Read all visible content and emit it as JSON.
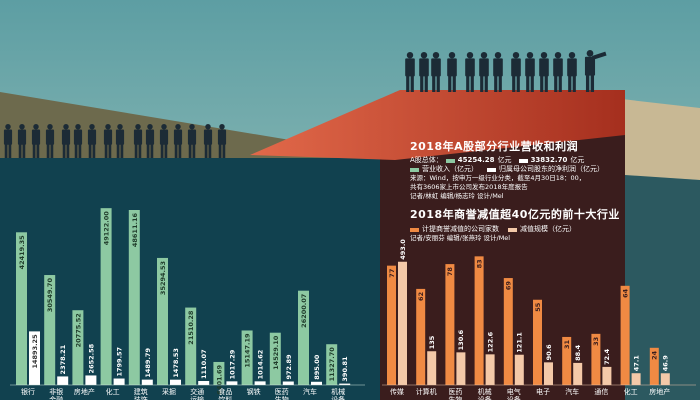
{
  "chart_data": [
    {
      "type": "bar",
      "title": "2018年A股部分行业营收和利润",
      "total_label": "A股总体：",
      "total_revenue": "45254.28",
      "total_revenue_unit": "亿元",
      "total_profit": "33832.70",
      "total_profit_unit": "亿元",
      "legend": {
        "revenue": "营业收入（亿元）",
        "profit": "归属母公司股东的净利润（亿元）"
      },
      "source": "来源：Wind，按申万一级行业分类，截至4月30日18：00，",
      "source2": "共有3606家上市公司发布2018年度报告",
      "credits": "记者/林虹 编辑/杨志玲 设计/Mel",
      "categories": [
        "银行",
        "非银金融",
        "房地产",
        "化工",
        "建筑装饰",
        "采掘",
        "交通运输",
        "食品饮料",
        "钢铁",
        "医药生物",
        "汽车",
        "机械设备"
      ],
      "category_labels": [
        "银行",
        "非银\n金融",
        "房地产",
        "化工",
        "建筑\n装饰",
        "采掘",
        "交通\n运输",
        "食品\n饮料",
        "钢铁",
        "医药\n生物",
        "汽车",
        "机械\n设备"
      ],
      "series": [
        {
          "name": "营业收入（亿元）",
          "values": [
            42419.35,
            30549.7,
            20775.52,
            49122.0,
            48611.16,
            35294.53,
            21510.28,
            6401.69,
            15147.19,
            14529.1,
            26200.07,
            11327.7
          ],
          "labels": [
            "42419.35",
            "30549.70",
            "20775.52",
            "49122.00",
            "48611.16",
            "35294.53",
            "21510.28",
            "6401.69",
            "15147.19",
            "14529.10",
            "26200.07",
            "11327.70"
          ]
        },
        {
          "name": "归属母公司股东的净利润（亿元）",
          "values": [
            14893.25,
            2378.21,
            2652.58,
            1799.57,
            1489.79,
            1478.53,
            1110.07,
            1017.29,
            1014.62,
            972.89,
            895.0,
            390.81
          ],
          "labels": [
            "14893.25",
            "2378.21",
            "2652.58",
            "1799.57",
            "1489.79",
            "1478.53",
            "1110.07",
            "1017.29",
            "1014.62",
            "972.89",
            "895.00",
            "390.81"
          ]
        }
      ]
    },
    {
      "type": "bar",
      "title": "2018年商誉减值超40亿元的前十大行业",
      "legend": {
        "count": "计提商誉减值的公司家数",
        "amount": "减值规模（亿元）"
      },
      "credits": "记者/安丽芬 编辑/张燕玲 设计/Mel",
      "categories": [
        "传媒",
        "计算机",
        "医药生物",
        "机械设备",
        "电气设备",
        "电子",
        "汽车",
        "通信",
        "化工",
        "房地产"
      ],
      "category_labels": [
        "传媒",
        "计算机",
        "医药\n生物",
        "机械\n设备",
        "电气\n设备",
        "电子",
        "汽车",
        "通信",
        "化工",
        "房地产"
      ],
      "series": [
        {
          "name": "计提商誉减值的公司家数",
          "values": [
            77,
            62,
            78,
            83,
            69,
            55,
            31,
            33,
            64,
            24
          ],
          "labels": [
            "77",
            "62",
            "78",
            "83",
            "69",
            "55",
            "31",
            "33",
            "64",
            "24"
          ]
        },
        {
          "name": "减值规模（亿元）",
          "values": [
            493.0,
            135,
            130.6,
            122.6,
            121.1,
            90.6,
            88.4,
            72.4,
            47.1,
            46.9
          ],
          "labels": [
            "493.0",
            "135",
            "130.6",
            "122.6",
            "121.1",
            "90.6",
            "88.4",
            "72.4",
            "47.1",
            "46.9"
          ]
        }
      ]
    }
  ],
  "colors": {
    "sky": "#6fa3a6",
    "teal_panel": "#11414f",
    "dark_panel": "#3a1d1d",
    "red_panel": "#a83020",
    "ground": "#6d6a4d",
    "revenue_bar": "#8dc9a2",
    "profit_bar": "#ffffff",
    "count_bar": "#f08a43",
    "amount_bar": "#f4c9a8"
  }
}
